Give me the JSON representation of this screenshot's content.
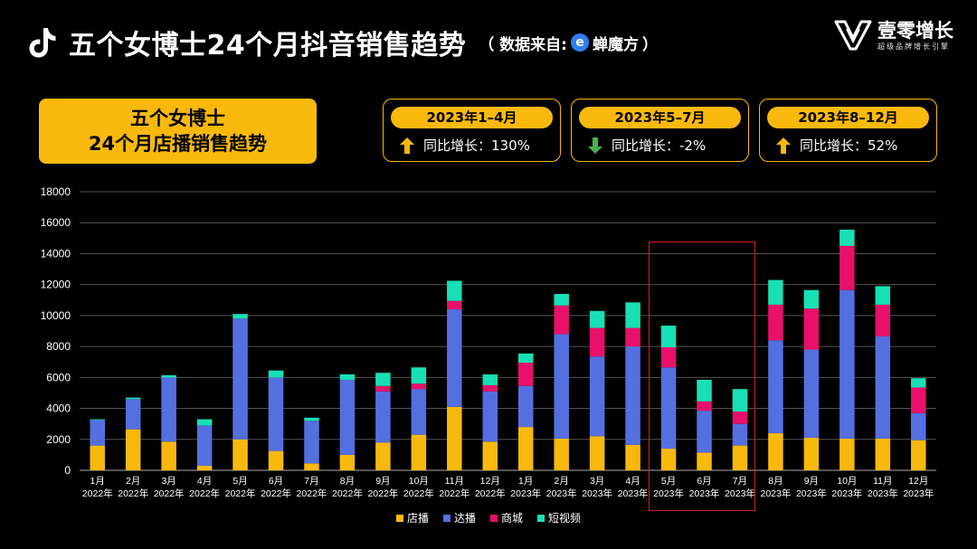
{
  "header": {
    "title": "五个女博士24个月抖音销售趋势",
    "source_prefix": "（ 数据来自:",
    "source_name": "蝉魔方",
    "source_suffix": "）"
  },
  "brand": {
    "name": "壹零增长",
    "tagline": "超级品牌增长引擎"
  },
  "headline": {
    "line1": "五个女博士",
    "line2": "24个月店播销售趋势"
  },
  "periods": [
    {
      "label": "2023年1–4月",
      "stat": "同比增长：130%",
      "direction": "up",
      "color": "#f8b90c"
    },
    {
      "label": "2023年5–7月",
      "stat": "同比增长：-2%",
      "direction": "down",
      "color": "#4caf50"
    },
    {
      "label": "2023年8–12月",
      "stat": "同比增长：52%",
      "direction": "up",
      "color": "#f8b90c"
    }
  ],
  "chart_data": {
    "type": "bar",
    "stacked": true,
    "ylim": [
      0,
      18000
    ],
    "yticks": [
      0,
      2000,
      4000,
      6000,
      8000,
      10000,
      12000,
      14000,
      16000,
      18000
    ],
    "categories": [
      [
        "1月",
        "2022年"
      ],
      [
        "2月",
        "2022年"
      ],
      [
        "3月",
        "2022年"
      ],
      [
        "4月",
        "2022年"
      ],
      [
        "5月",
        "2022年"
      ],
      [
        "6月",
        "2022年"
      ],
      [
        "7月",
        "2022年"
      ],
      [
        "8月",
        "2022年"
      ],
      [
        "9月",
        "2022年"
      ],
      [
        "10月",
        "2022年"
      ],
      [
        "11月",
        "2022年"
      ],
      [
        "12月",
        "2022年"
      ],
      [
        "1月",
        "2023年"
      ],
      [
        "2月",
        "2023年"
      ],
      [
        "3月",
        "2023年"
      ],
      [
        "4月",
        "2023年"
      ],
      [
        "5月",
        "2023年"
      ],
      [
        "6月",
        "2023年"
      ],
      [
        "7月",
        "2023年"
      ],
      [
        "8月",
        "2023年"
      ],
      [
        "9月",
        "2023年"
      ],
      [
        "10月",
        "2023年"
      ],
      [
        "11月",
        "2023年"
      ],
      [
        "12月",
        "2023年"
      ]
    ],
    "series": [
      {
        "name": "店播",
        "color": "#f8b90c",
        "values": [
          1600,
          2650,
          1850,
          300,
          2000,
          1250,
          450,
          1000,
          1800,
          2300,
          4100,
          1850,
          2800,
          2050,
          2200,
          1650,
          1400,
          1150,
          1600,
          2400,
          2100,
          2050,
          2050,
          1950
        ]
      },
      {
        "name": "达播",
        "color": "#5470e0",
        "values": [
          1650,
          1950,
          4150,
          2600,
          7800,
          4750,
          2750,
          4850,
          3300,
          2950,
          6300,
          3250,
          2650,
          6750,
          5150,
          6350,
          5250,
          2700,
          1400,
          6000,
          5700,
          9600,
          6600,
          1750
        ]
      },
      {
        "name": "商城",
        "color": "#e8106a",
        "values": [
          0,
          0,
          0,
          0,
          0,
          0,
          0,
          0,
          350,
          350,
          550,
          400,
          1500,
          1850,
          1850,
          1200,
          1300,
          600,
          800,
          2300,
          2650,
          2850,
          2050,
          1650
        ]
      },
      {
        "name": "短视频",
        "color": "#18e0b4",
        "values": [
          50,
          100,
          150,
          400,
          300,
          450,
          200,
          350,
          850,
          1050,
          1300,
          700,
          600,
          750,
          1100,
          1650,
          1400,
          1400,
          1450,
          1600,
          1200,
          1050,
          1200,
          600
        ]
      }
    ],
    "highlight_range": [
      16,
      18
    ]
  }
}
